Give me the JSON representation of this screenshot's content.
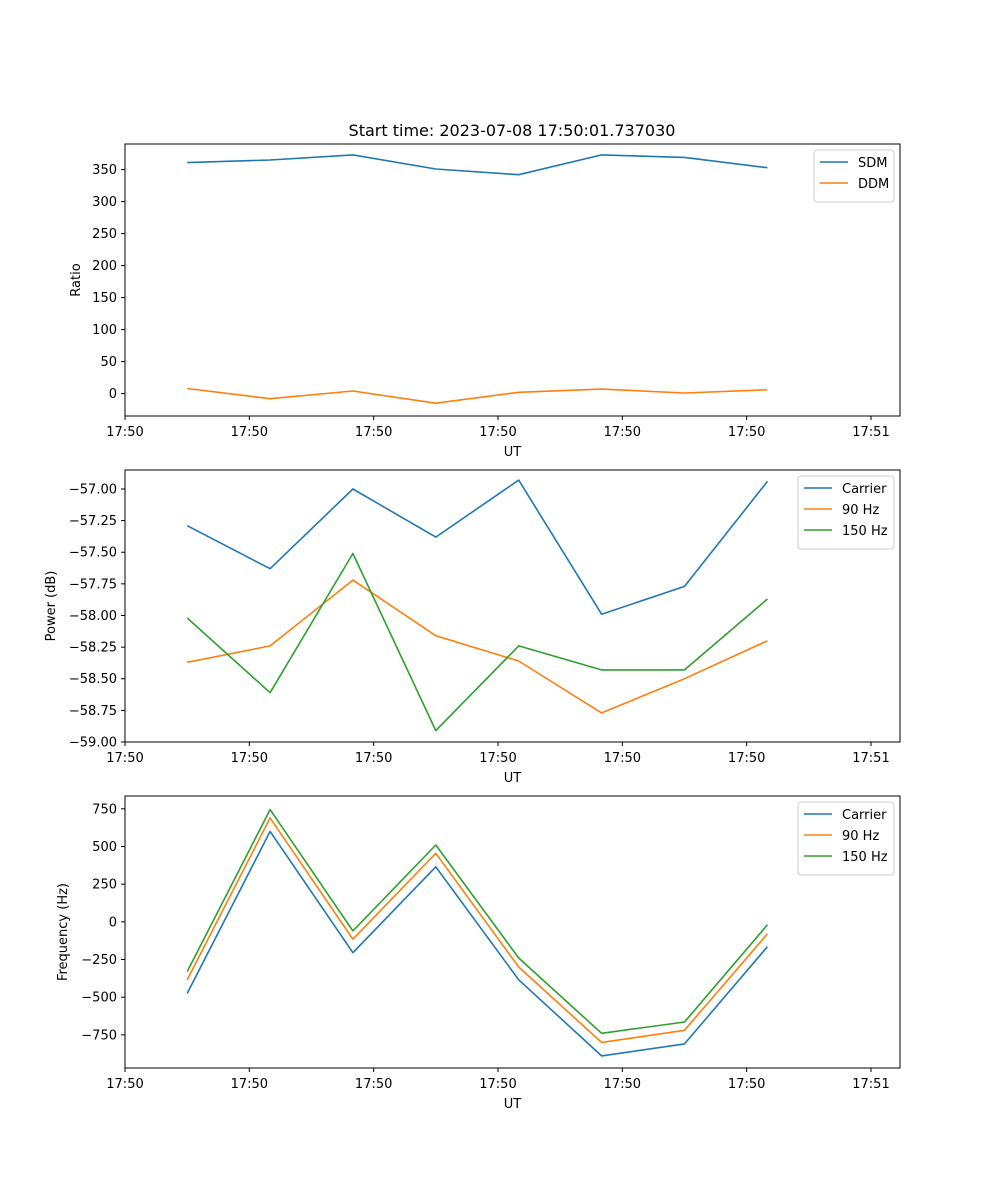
{
  "chart_data": [
    {
      "type": "line",
      "title": "Start time: 2023-07-08 17:50:01.737030",
      "xlabel": "UT",
      "ylabel": "Ratio",
      "legend_position": "upper-right",
      "x_ticks": [
        "17:50",
        "17:50",
        "17:50",
        "17:50",
        "17:50",
        "17:50",
        "17:51"
      ],
      "ylim": [
        -35,
        390
      ],
      "y_ticks": [
        0,
        50,
        100,
        150,
        200,
        250,
        300,
        350
      ],
      "y_tick_labels": [
        "0",
        "50",
        "100",
        "150",
        "200",
        "250",
        "300",
        "350"
      ],
      "colors": [
        "#1f77b4",
        "#ff7f0e"
      ],
      "series": [
        {
          "name": "SDM",
          "values": [
            361,
            365,
            373,
            351,
            342,
            373,
            369,
            353
          ]
        },
        {
          "name": "DDM",
          "values": [
            8,
            -8,
            4,
            -15,
            2,
            7,
            1,
            6
          ]
        }
      ]
    },
    {
      "type": "line",
      "title": "",
      "xlabel": "UT",
      "ylabel": "Power (dB)",
      "legend_position": "upper-right",
      "x_ticks": [
        "17:50",
        "17:50",
        "17:50",
        "17:50",
        "17:50",
        "17:50",
        "17:51"
      ],
      "ylim": [
        -59.0,
        -56.85
      ],
      "y_ticks": [
        -59.0,
        -58.75,
        -58.5,
        -58.25,
        -58.0,
        -57.75,
        -57.5,
        -57.25,
        -57.0
      ],
      "y_tick_labels": [
        "−59.00",
        "−58.75",
        "−58.50",
        "−58.25",
        "−58.00",
        "−57.75",
        "−57.50",
        "−57.25",
        "−57.00"
      ],
      "colors": [
        "#1f77b4",
        "#ff7f0e",
        "#2ca02c"
      ],
      "series": [
        {
          "name": "Carrier",
          "values": [
            -57.29,
            -57.63,
            -57.0,
            -57.38,
            -56.93,
            -57.99,
            -57.77,
            -56.94
          ]
        },
        {
          "name": "90 Hz",
          "values": [
            -58.37,
            -58.24,
            -57.72,
            -58.16,
            -58.36,
            -58.77,
            -58.5,
            -58.2
          ]
        },
        {
          "name": "150 Hz",
          "values": [
            -58.02,
            -58.61,
            -57.51,
            -58.91,
            -58.24,
            -58.43,
            -58.43,
            -57.87
          ]
        }
      ]
    },
    {
      "type": "line",
      "title": "",
      "xlabel": "UT",
      "ylabel": "Frequency (Hz)",
      "legend_position": "upper-right",
      "x_ticks": [
        "17:50",
        "17:50",
        "17:50",
        "17:50",
        "17:50",
        "17:50",
        "17:51"
      ],
      "ylim": [
        -970,
        835
      ],
      "y_ticks": [
        -750,
        -500,
        -250,
        0,
        250,
        500,
        750
      ],
      "y_tick_labels": [
        "−750",
        "−500",
        "−250",
        "0",
        "250",
        "500",
        "750"
      ],
      "colors": [
        "#1f77b4",
        "#ff7f0e",
        "#2ca02c"
      ],
      "series": [
        {
          "name": "Carrier",
          "values": [
            -475,
            600,
            -205,
            365,
            -385,
            -890,
            -810,
            -165
          ]
        },
        {
          "name": "90 Hz",
          "values": [
            -385,
            690,
            -115,
            455,
            -300,
            -800,
            -720,
            -80
          ]
        },
        {
          "name": "150 Hz",
          "values": [
            -330,
            745,
            -60,
            510,
            -240,
            -740,
            -665,
            -20
          ]
        }
      ]
    }
  ]
}
